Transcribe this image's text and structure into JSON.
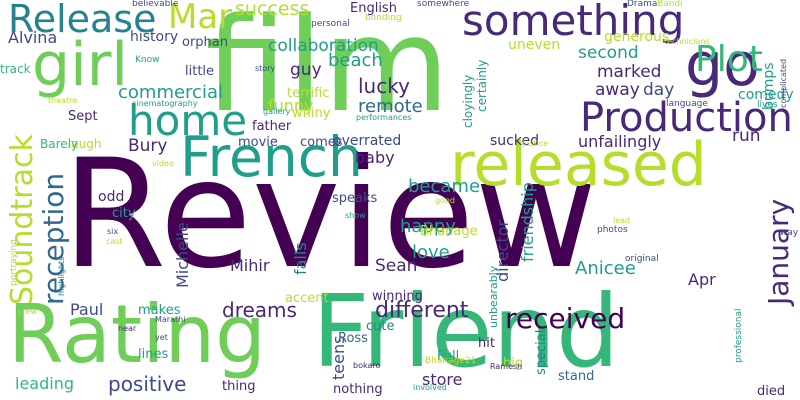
{
  "palette": {
    "dark-purple": "#440154",
    "purple": "#482878",
    "indigo": "#3e4a89",
    "blue": "#31688e",
    "teal-blue": "#26828e",
    "teal": "#1f9e89",
    "green-teal": "#35b779",
    "green": "#6ece58",
    "lime": "#b5de2b"
  },
  "words": [
    "Review",
    "film",
    "Friend",
    "Rating",
    "released",
    "French",
    "girl",
    "go",
    "something",
    "Production",
    "home",
    "Release",
    "Soundtrack",
    "reception",
    "Plot",
    "Mar",
    "January",
    "received",
    "different",
    "positive",
    "dreams",
    "commercial",
    "collaboration",
    "success",
    "became",
    "Michelle",
    "friendship",
    "director",
    "happy",
    "Anicee",
    "lucky",
    "beach",
    "remote",
    "funny",
    "marked",
    "second",
    "away",
    "day",
    "run",
    "guy",
    "Bury",
    "love",
    "Sean",
    "Mihir",
    "Paul",
    "teens",
    "store",
    "leading",
    "Alvina",
    "baby",
    "Apr",
    "unfailingly",
    "falls",
    "bumps",
    "comedy",
    "overrated",
    "sucked",
    "history",
    "orphan",
    "little",
    "terrific",
    "whiny",
    "uneven",
    "generous",
    "English",
    "cloyingly",
    "certainly",
    "father",
    "movie",
    "comes",
    "odd",
    "city",
    "speaks",
    "Bhanage",
    "accent",
    "winning",
    "makes",
    "lines",
    "Ross",
    "cute",
    "hit",
    "big",
    "Full",
    "stand",
    "special",
    "nothing",
    "died",
    "thing",
    "unbearably",
    "Sept",
    "laugh",
    "track",
    "Barely",
    "believable",
    "somewhere",
    "bonding",
    "personal",
    "Drama",
    "Bandi",
    "Know",
    "theatre",
    "cinematography",
    "story",
    "gallery",
    "performances",
    "language",
    "lives",
    "technicians",
    "complicated",
    "video",
    "justice",
    "portraying",
    "six",
    "cast",
    "crew",
    "highlights",
    "good",
    "show",
    "lead",
    "photos",
    "original",
    "way",
    "near",
    "Marathi",
    "yet",
    "bokaro",
    "Bhanage21",
    "involved",
    "Ramesh",
    "professional"
  ]
}
